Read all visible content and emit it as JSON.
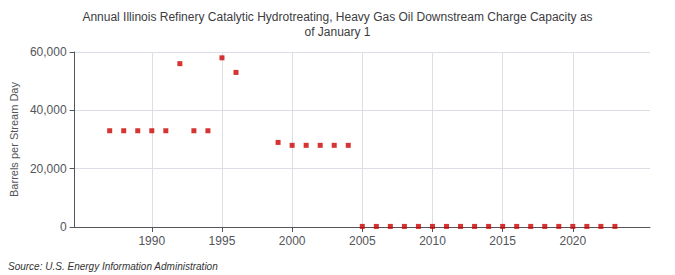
{
  "chart_data": {
    "type": "scatter",
    "title": "Annual Illinois Refinery Catalytic Hydrotreating, Heavy Gas Oil Downstream Charge Capacity as\nof January 1",
    "ylabel": "Barrels per Stream Day",
    "source": "Source: U.S. Energy Information Administration",
    "color": "#cc0000",
    "marker": "square",
    "grid": true,
    "x": [
      1987,
      1988,
      1989,
      1990,
      1991,
      1992,
      1993,
      1994,
      1995,
      1996,
      1999,
      2000,
      2001,
      2002,
      2003,
      2004,
      2005,
      2006,
      2007,
      2008,
      2009,
      2010,
      2011,
      2012,
      2013,
      2014,
      2015,
      2016,
      2017,
      2018,
      2019,
      2020,
      2021,
      2022,
      2023
    ],
    "values": [
      33000,
      33000,
      33000,
      33000,
      33000,
      56000,
      33000,
      33000,
      58000,
      53000,
      29000,
      28000,
      28000,
      28000,
      28000,
      28000,
      200,
      200,
      200,
      200,
      200,
      200,
      200,
      200,
      200,
      200,
      200,
      200,
      200,
      200,
      200,
      200,
      200,
      200,
      200
    ],
    "xlim": [
      1984.5,
      2025.5
    ],
    "xticks": [
      1990,
      1995,
      2000,
      2005,
      2010,
      2015,
      2020
    ],
    "ylim": [
      0,
      60000
    ],
    "yticks": [
      0,
      {
        "value": 20000,
        "label": "20,000"
      },
      {
        "value": 40000,
        "label": "40,000"
      },
      {
        "value": 60000,
        "label": "60,000"
      }
    ]
  }
}
